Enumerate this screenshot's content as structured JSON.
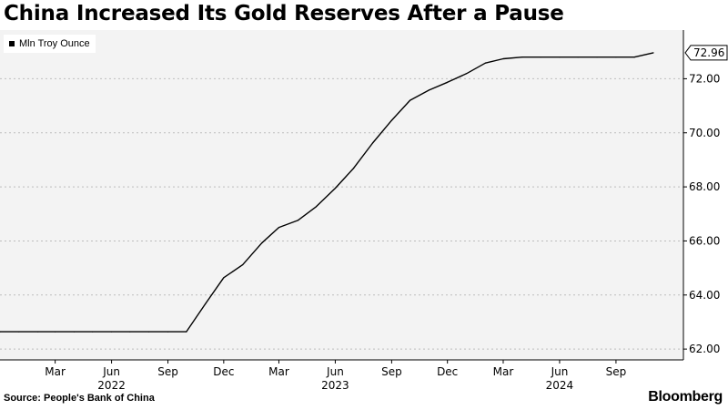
{
  "header": {
    "title": "China Increased Its Gold Reserves After a Pause"
  },
  "legend": {
    "label": "Mln Troy Ounce",
    "swatch_color": "#000000"
  },
  "footer": {
    "source": "Source: People's Bank of China",
    "brand": "Bloomberg"
  },
  "last_value_label": "72.96",
  "chart_data": {
    "type": "line",
    "title": "China Increased Its Gold Reserves After a Pause",
    "xlabel": "",
    "ylabel": "",
    "legend_position": "top-left",
    "grid": "horizontal dashed",
    "ylim": [
      61.6,
      73.8
    ],
    "xlim": [
      "2021-12-01",
      "2024-12-20"
    ],
    "y_ticks": [
      62.0,
      64.0,
      66.0,
      68.0,
      70.0,
      72.0
    ],
    "y_tick_labels": [
      "62.00",
      "64.00",
      "66.00",
      "68.00",
      "70.00",
      "72.00"
    ],
    "x_ticks": [
      {
        "date": "2022-03-01",
        "label": "Mar"
      },
      {
        "date": "2022-06-01",
        "label": "Jun"
      },
      {
        "date": "2022-09-01",
        "label": "Sep"
      },
      {
        "date": "2022-12-01",
        "label": "Dec"
      },
      {
        "date": "2023-03-01",
        "label": "Mar"
      },
      {
        "date": "2023-06-01",
        "label": "Jun"
      },
      {
        "date": "2023-09-01",
        "label": "Sep"
      },
      {
        "date": "2023-12-01",
        "label": "Dec"
      },
      {
        "date": "2024-03-01",
        "label": "Mar"
      },
      {
        "date": "2024-06-01",
        "label": "Jun"
      },
      {
        "date": "2024-09-01",
        "label": "Sep"
      }
    ],
    "year_labels": [
      {
        "date": "2022-06-01",
        "label": "2022"
      },
      {
        "date": "2023-06-01",
        "label": "2023"
      },
      {
        "date": "2024-06-01",
        "label": "2024"
      }
    ],
    "series": [
      {
        "name": "Mln Troy Ounce",
        "color": "#000000",
        "points": [
          [
            "2021-12-01",
            62.64
          ],
          [
            "2022-01-01",
            62.64
          ],
          [
            "2022-02-01",
            62.64
          ],
          [
            "2022-03-01",
            62.64
          ],
          [
            "2022-04-01",
            62.64
          ],
          [
            "2022-05-01",
            62.64
          ],
          [
            "2022-06-01",
            62.64
          ],
          [
            "2022-07-01",
            62.64
          ],
          [
            "2022-08-01",
            62.64
          ],
          [
            "2022-09-01",
            62.64
          ],
          [
            "2022-10-01",
            62.64
          ],
          [
            "2022-11-01",
            63.67
          ],
          [
            "2022-12-01",
            64.64
          ],
          [
            "2023-01-01",
            65.12
          ],
          [
            "2023-02-01",
            65.92
          ],
          [
            "2023-03-01",
            66.5
          ],
          [
            "2023-04-01",
            66.76
          ],
          [
            "2023-05-01",
            67.27
          ],
          [
            "2023-06-01",
            67.95
          ],
          [
            "2023-07-01",
            68.69
          ],
          [
            "2023-08-01",
            69.62
          ],
          [
            "2023-09-01",
            70.46
          ],
          [
            "2023-10-01",
            71.2
          ],
          [
            "2023-11-01",
            71.58
          ],
          [
            "2023-12-01",
            71.87
          ],
          [
            "2024-01-01",
            72.19
          ],
          [
            "2024-02-01",
            72.58
          ],
          [
            "2024-03-01",
            72.74
          ],
          [
            "2024-04-01",
            72.8
          ],
          [
            "2024-05-01",
            72.8
          ],
          [
            "2024-06-01",
            72.8
          ],
          [
            "2024-07-01",
            72.8
          ],
          [
            "2024-08-01",
            72.8
          ],
          [
            "2024-09-01",
            72.8
          ],
          [
            "2024-10-01",
            72.8
          ],
          [
            "2024-11-01",
            72.96
          ]
        ]
      }
    ]
  }
}
